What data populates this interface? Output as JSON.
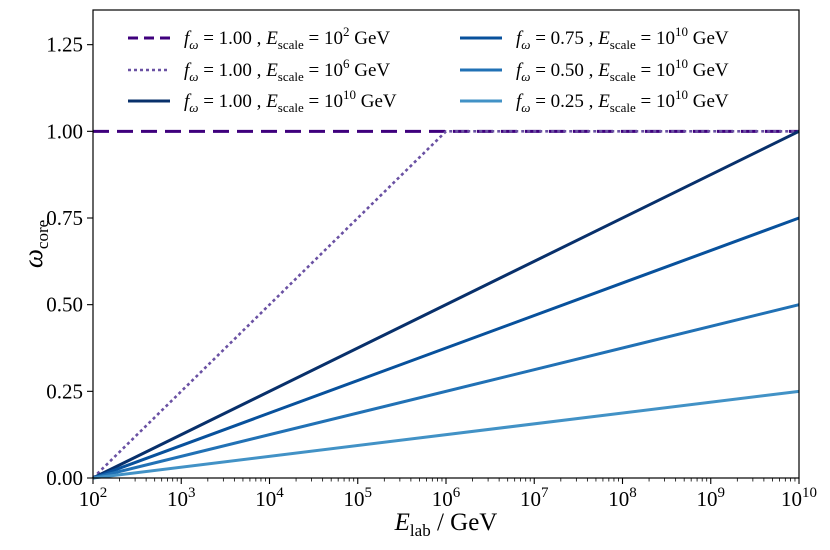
{
  "chart_data": {
    "type": "line",
    "title": "",
    "xlabel": {
      "var": "E",
      "sub": "lab",
      "unit": " / GeV"
    },
    "ylabel": {
      "var": "ω",
      "sub": "core"
    },
    "xscale": "log10",
    "xlim_log10": [
      2,
      10
    ],
    "ylim": [
      0,
      1.35
    ],
    "x_ticks": [
      {
        "base": "10",
        "exp": "2"
      },
      {
        "base": "10",
        "exp": "3"
      },
      {
        "base": "10",
        "exp": "4"
      },
      {
        "base": "10",
        "exp": "5"
      },
      {
        "base": "10",
        "exp": "6"
      },
      {
        "base": "10",
        "exp": "7"
      },
      {
        "base": "10",
        "exp": "8"
      },
      {
        "base": "10",
        "exp": "9"
      },
      {
        "base": "10",
        "exp": "10"
      }
    ],
    "x_tick_values_log10": [
      2,
      3,
      4,
      5,
      6,
      7,
      8,
      9,
      10
    ],
    "y_ticks": [
      "0.00",
      "0.25",
      "0.50",
      "0.75",
      "1.00",
      "1.25"
    ],
    "y_tick_values": [
      0,
      0.25,
      0.5,
      0.75,
      1.0,
      1.25
    ],
    "grid": false,
    "legend_position": "top",
    "series": [
      {
        "f": "1.00",
        "escale_exp": "2",
        "color": "#3f007d",
        "dash": "dashed",
        "log10_x": [
          2,
          10
        ],
        "y": [
          1.0,
          1.0
        ]
      },
      {
        "f": "1.00",
        "escale_exp": "6",
        "color": "#6a51a3",
        "dash": "dotted",
        "log10_x": [
          2,
          6,
          10
        ],
        "y": [
          0.0,
          1.0,
          1.0
        ]
      },
      {
        "f": "1.00",
        "escale_exp": "10",
        "color": "#08306b",
        "dash": "solid",
        "log10_x": [
          2,
          10
        ],
        "y": [
          0.0,
          1.0
        ]
      },
      {
        "f": "0.75",
        "escale_exp": "10",
        "color": "#08519c",
        "dash": "solid",
        "log10_x": [
          2,
          10
        ],
        "y": [
          0.0,
          0.75
        ]
      },
      {
        "f": "0.50",
        "escale_exp": "10",
        "color": "#2171b5",
        "dash": "solid",
        "log10_x": [
          2,
          10
        ],
        "y": [
          0.0,
          0.5
        ]
      },
      {
        "f": "0.25",
        "escale_exp": "10",
        "color": "#4292c6",
        "dash": "solid",
        "log10_x": [
          2,
          10
        ],
        "y": [
          0.0,
          0.25
        ]
      }
    ],
    "legend_label": {
      "f_symbol": "f",
      "f_sub": "ω",
      "e_symbol": "E",
      "e_sub": "scale",
      "base": "10",
      "unit": "GeV"
    }
  }
}
